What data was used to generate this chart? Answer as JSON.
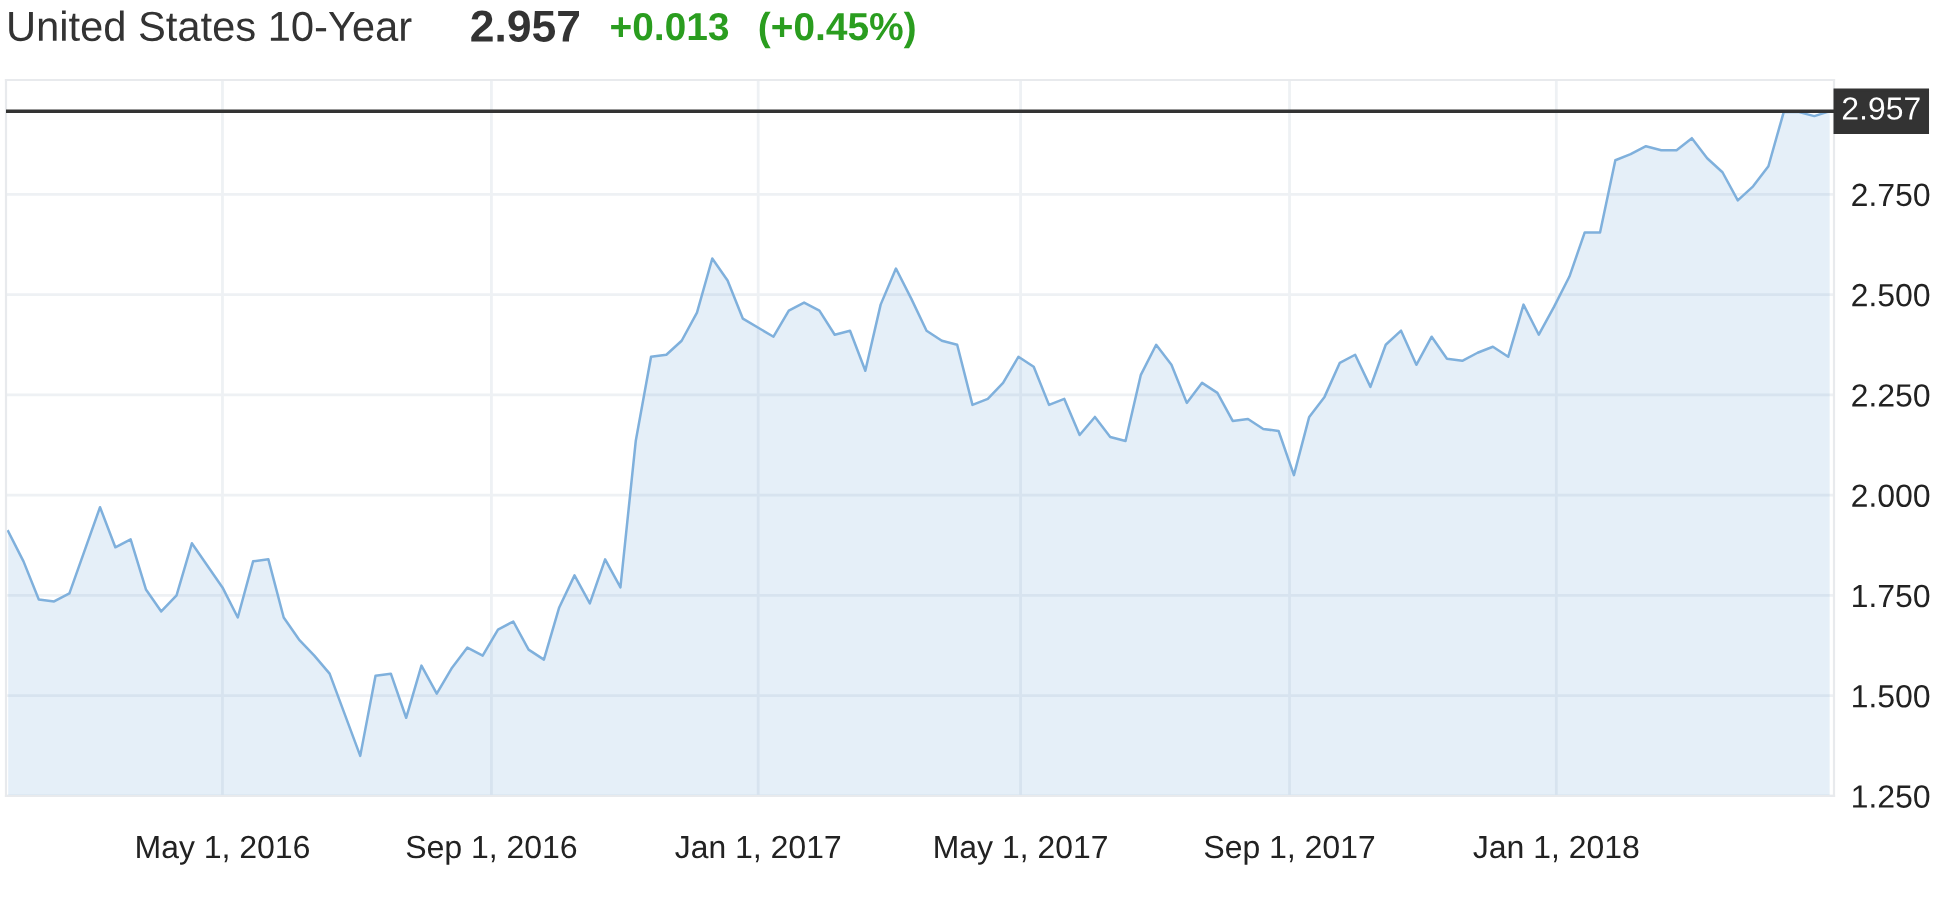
{
  "chart_data": {
    "type": "area",
    "title": "United States 10-Year",
    "annotations": [
      "2.957",
      "+0.013",
      "(+0.45%)"
    ],
    "x": [
      "2016-01-24",
      "2016-01-31",
      "2016-02-07",
      "2016-02-14",
      "2016-02-21",
      "2016-03-06",
      "2016-03-13",
      "2016-03-20",
      "2016-03-27",
      "2016-04-03",
      "2016-04-10",
      "2016-04-17",
      "2016-05-01",
      "2016-05-08",
      "2016-05-15",
      "2016-05-22",
      "2016-05-29",
      "2016-06-05",
      "2016-06-12",
      "2016-06-19",
      "2016-07-03",
      "2016-07-10",
      "2016-07-17",
      "2016-07-24",
      "2016-07-31",
      "2016-08-07",
      "2016-08-14",
      "2016-08-21",
      "2016-08-28",
      "2016-09-04",
      "2016-09-11",
      "2016-09-18",
      "2016-09-25",
      "2016-10-02",
      "2016-10-09",
      "2016-10-16",
      "2016-10-23",
      "2016-10-30",
      "2016-11-06",
      "2016-11-13",
      "2016-11-20",
      "2016-11-27",
      "2016-12-04",
      "2016-12-11",
      "2016-12-18",
      "2016-12-25",
      "2017-01-08",
      "2017-01-15",
      "2017-01-22",
      "2017-01-29",
      "2017-02-05",
      "2017-02-12",
      "2017-02-19",
      "2017-02-26",
      "2017-03-05",
      "2017-03-12",
      "2017-03-19",
      "2017-03-26",
      "2017-04-02",
      "2017-04-09",
      "2017-04-16",
      "2017-04-23",
      "2017-04-30",
      "2017-05-07",
      "2017-05-14",
      "2017-05-21",
      "2017-05-28",
      "2017-06-04",
      "2017-06-11",
      "2017-06-18",
      "2017-06-25",
      "2017-07-02",
      "2017-07-09",
      "2017-07-16",
      "2017-07-23",
      "2017-07-30",
      "2017-08-06",
      "2017-08-13",
      "2017-08-20",
      "2017-08-27",
      "2017-09-03",
      "2017-09-10",
      "2017-09-17",
      "2017-09-24",
      "2017-10-01",
      "2017-10-08",
      "2017-10-15",
      "2017-10-22",
      "2017-10-29",
      "2017-11-05",
      "2017-11-12",
      "2017-11-19",
      "2017-11-26",
      "2017-12-03",
      "2017-12-10",
      "2017-12-17",
      "2017-12-24",
      "2017-12-31",
      "2018-01-07",
      "2018-01-14",
      "2018-01-21",
      "2018-01-28",
      "2018-02-04",
      "2018-02-11",
      "2018-02-18",
      "2018-02-25",
      "2018-03-04",
      "2018-03-11",
      "2018-03-18",
      "2018-03-25",
      "2018-04-01",
      "2018-04-08",
      "2018-04-15",
      "2018-04-22",
      "2018-04-29",
      "2018-05-06"
    ],
    "series": [
      {
        "color": "#7fb0dc",
        "values": [
          1.91,
          1.835,
          1.74,
          1.735,
          1.755,
          1.97,
          1.87,
          1.89,
          1.765,
          1.71,
          1.75,
          1.88,
          1.77,
          1.695,
          1.835,
          1.84,
          1.695,
          1.64,
          1.6,
          1.555,
          1.35,
          1.55,
          1.555,
          1.445,
          1.575,
          1.505,
          1.57,
          1.62,
          1.6,
          1.665,
          1.685,
          1.615,
          1.59,
          1.72,
          1.8,
          1.73,
          1.84,
          1.77,
          2.135,
          2.345,
          2.35,
          2.385,
          2.455,
          2.59,
          2.535,
          2.44,
          2.395,
          2.46,
          2.48,
          2.46,
          2.4,
          2.41,
          2.31,
          2.475,
          2.565,
          2.49,
          2.41,
          2.385,
          2.375,
          2.225,
          2.24,
          2.28,
          2.345,
          2.32,
          2.225,
          2.24,
          2.15,
          2.195,
          2.145,
          2.135,
          2.3,
          2.375,
          2.325,
          2.23,
          2.28,
          2.255,
          2.185,
          2.19,
          2.165,
          2.16,
          2.05,
          2.195,
          2.245,
          2.33,
          2.35,
          2.27,
          2.375,
          2.41,
          2.325,
          2.395,
          2.34,
          2.335,
          2.355,
          2.37,
          2.345,
          2.475,
          2.4,
          2.47,
          2.545,
          2.655,
          2.655,
          2.835,
          2.85,
          2.87,
          2.86,
          2.86,
          2.89,
          2.84,
          2.805,
          2.735,
          2.77,
          2.82,
          2.955,
          2.955,
          2.945,
          2.957
        ]
      }
    ],
    "xlim": [
      "2016-01-23",
      "2018-05-08"
    ],
    "xticks": [
      {
        "value": "2016-05-01",
        "label": "May 1, 2016"
      },
      {
        "value": "2016-09-01",
        "label": "Sep 1, 2016"
      },
      {
        "value": "2017-01-01",
        "label": "Jan 1, 2017"
      },
      {
        "value": "2017-05-01",
        "label": "May 1, 2017"
      },
      {
        "value": "2017-09-01",
        "label": "Sep 1, 2017"
      },
      {
        "value": "2018-01-01",
        "label": "Jan 1, 2018"
      }
    ],
    "ylim": [
      1.25,
      3.035
    ],
    "yticks": [
      {
        "value": 1.25,
        "label": "1.250"
      },
      {
        "value": 1.5,
        "label": "1.500"
      },
      {
        "value": 1.75,
        "label": "1.750"
      },
      {
        "value": 2.0,
        "label": "2.000"
      },
      {
        "value": 2.25,
        "label": "2.250"
      },
      {
        "value": 2.5,
        "label": "2.500"
      },
      {
        "value": 2.75,
        "label": "2.750"
      }
    ],
    "ref_lines": [
      {
        "axis": "y",
        "value": 2.957,
        "label": "2.957",
        "color": "#333333"
      }
    ],
    "grid": true
  }
}
